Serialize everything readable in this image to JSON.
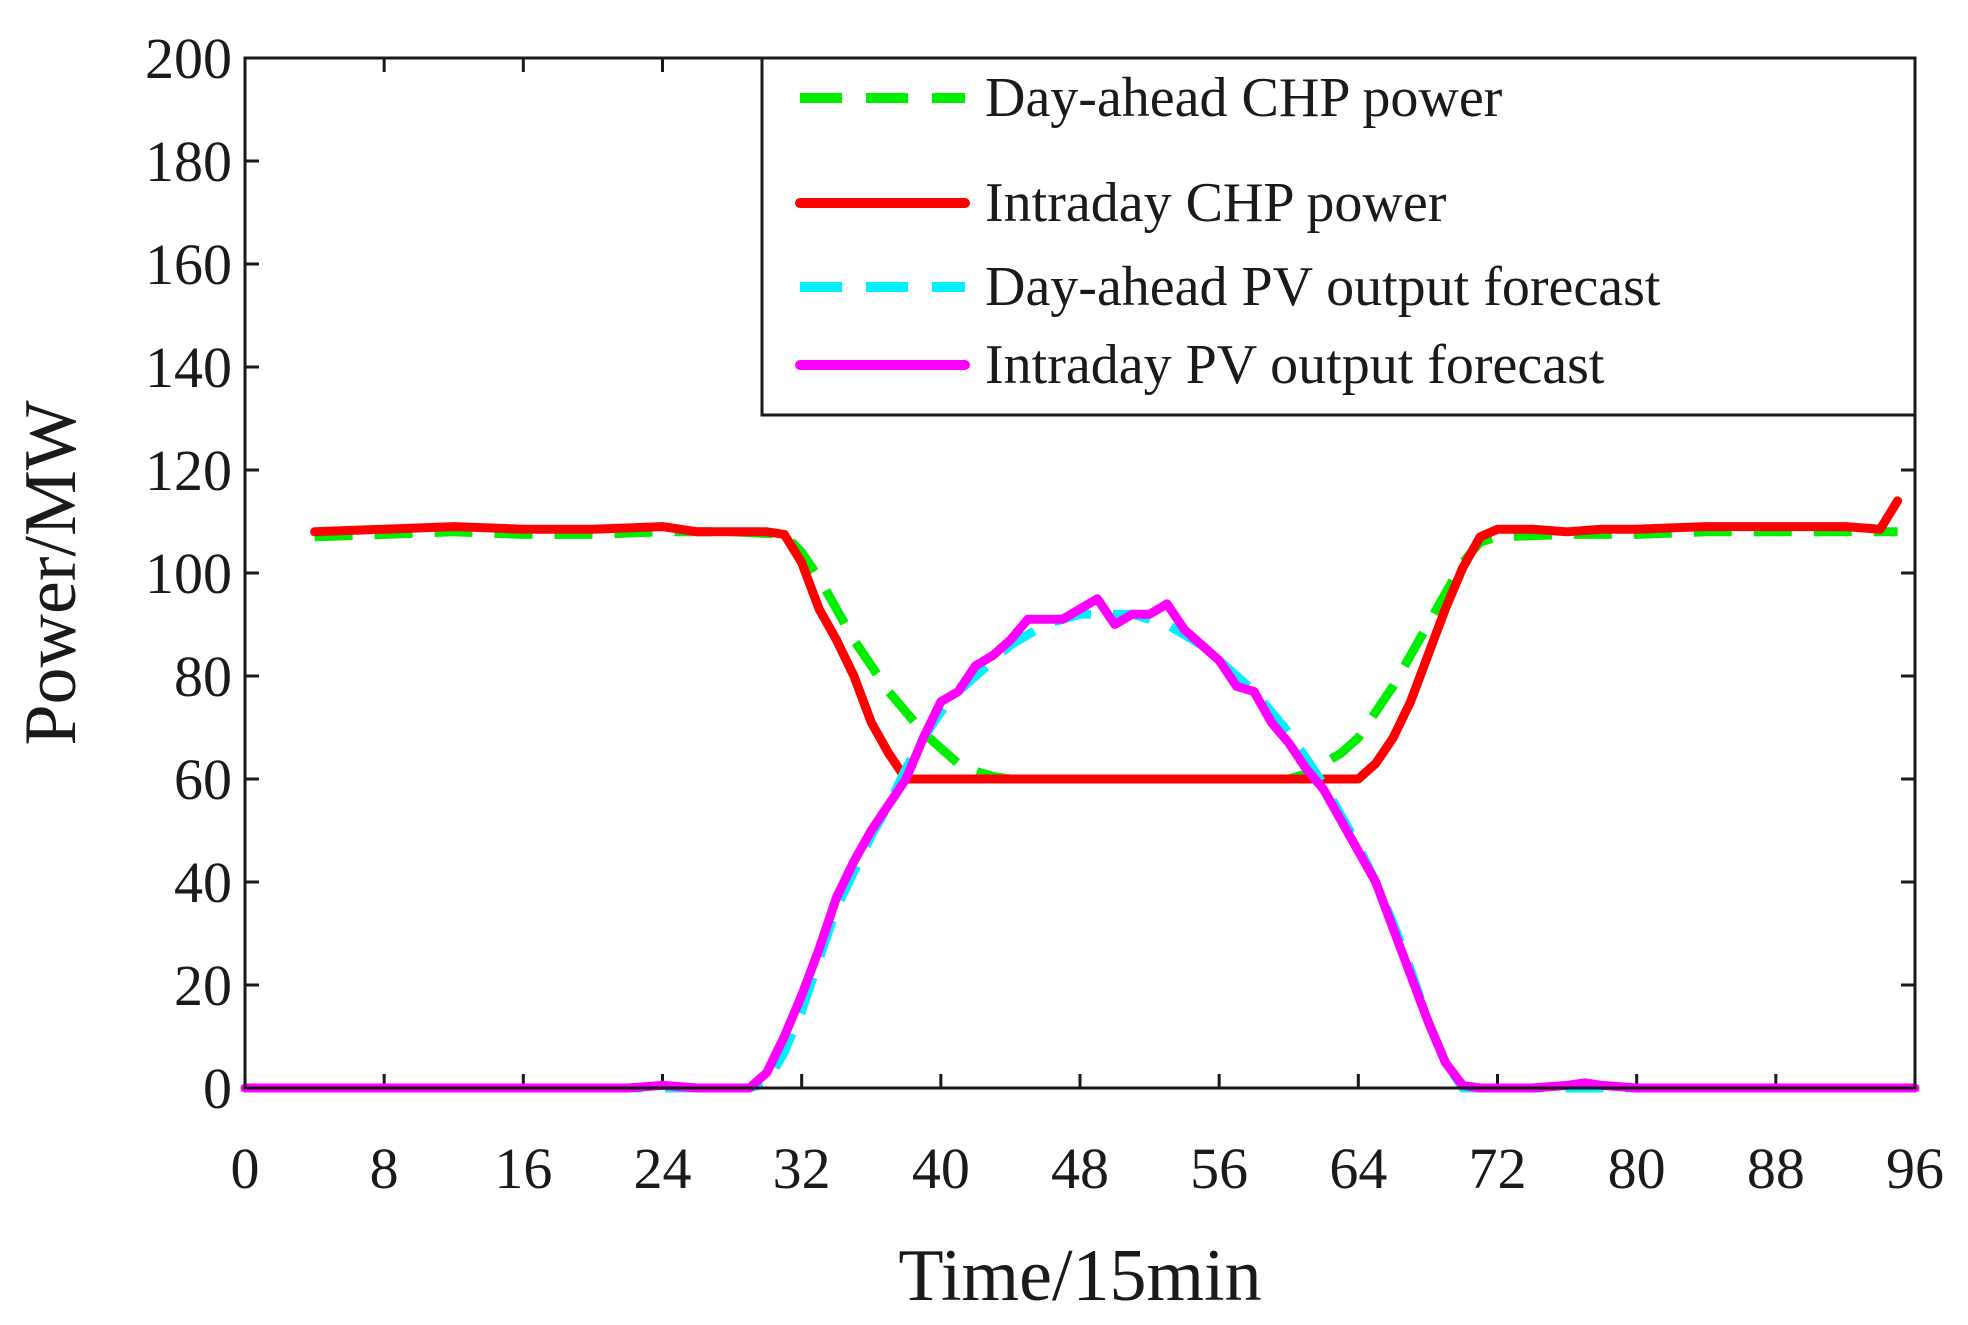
{
  "chart_data": {
    "type": "line",
    "title": "",
    "xlabel": "Time/15min",
    "ylabel": "Power/MW",
    "xlim": [
      0,
      96
    ],
    "ylim": [
      0,
      200
    ],
    "xticks": [
      0,
      8,
      16,
      24,
      32,
      40,
      48,
      56,
      64,
      72,
      80,
      88,
      96
    ],
    "yticks": [
      0,
      20,
      40,
      60,
      80,
      100,
      120,
      140,
      160,
      180,
      200
    ],
    "legend_position": "top-right",
    "series": [
      {
        "name": "Day-ahead CHP power",
        "color": "#00ee00",
        "style": "dashed",
        "x": [
          4,
          8,
          12,
          16,
          20,
          24,
          28,
          31,
          32,
          33,
          34,
          35,
          36,
          37,
          38,
          39,
          40,
          41,
          42,
          43,
          44,
          48,
          52,
          56,
          60,
          61,
          62,
          63,
          64,
          65,
          66,
          67,
          68,
          69,
          70,
          71,
          72,
          76,
          80,
          84,
          88,
          92,
          95
        ],
        "values": [
          107,
          107.5,
          108,
          107.5,
          107.5,
          108,
          108,
          107.5,
          104,
          99,
          93,
          87,
          82,
          77,
          73,
          69,
          66,
          63,
          61.5,
          60.5,
          60,
          60,
          60,
          60,
          60,
          61,
          63,
          65,
          68,
          73,
          78,
          84,
          90,
          96,
          102,
          106,
          107,
          107.5,
          107.5,
          108,
          108,
          108,
          108
        ]
      },
      {
        "name": "Intraday CHP power",
        "color": "#ff0000",
        "style": "solid",
        "x": [
          4,
          8,
          12,
          16,
          20,
          24,
          26,
          28,
          30,
          31,
          32,
          33,
          34,
          35,
          36,
          37,
          38,
          39,
          44,
          48,
          52,
          56,
          60,
          62,
          63,
          64,
          65,
          66,
          67,
          68,
          69,
          70,
          71,
          72,
          74,
          76,
          78,
          80,
          84,
          88,
          92,
          94,
          95
        ],
        "values": [
          108,
          108.5,
          109,
          108.5,
          108.5,
          109,
          108,
          108,
          108,
          107.5,
          102,
          93,
          87,
          80,
          71,
          65,
          60,
          60,
          60,
          60,
          60,
          60,
          60,
          60,
          60,
          60,
          63,
          68,
          75,
          84,
          93,
          101,
          107,
          108.5,
          108.5,
          108,
          108.5,
          108.5,
          109,
          109,
          109,
          108.5,
          114
        ]
      },
      {
        "name": "Day-ahead PV output forecast",
        "color": "#00f0ff",
        "style": "dashed",
        "x": [
          0,
          4,
          8,
          12,
          16,
          20,
          24,
          28,
          29,
          30,
          31,
          32,
          33,
          34,
          35,
          36,
          37,
          38,
          39,
          40,
          41,
          42,
          43,
          44,
          45,
          46,
          47,
          48,
          49,
          50,
          51,
          52,
          53,
          54,
          55,
          56,
          57,
          58,
          59,
          60,
          61,
          62,
          63,
          64,
          65,
          66,
          67,
          68,
          69,
          70,
          71,
          72,
          76,
          80,
          84,
          88,
          92,
          96
        ],
        "values": [
          0,
          0,
          0,
          0,
          0,
          0,
          0,
          0,
          0,
          1,
          7,
          15,
          25,
          35,
          42,
          49,
          55,
          62,
          68,
          73,
          77,
          80,
          83,
          86,
          88,
          90,
          91,
          92,
          92,
          92,
          92,
          91,
          90,
          88,
          86,
          83,
          80,
          77,
          73,
          69,
          64,
          59,
          53,
          47,
          40,
          32,
          23,
          13,
          5,
          0,
          0,
          0,
          0,
          0,
          0,
          0,
          0,
          0
        ]
      },
      {
        "name": "Intraday PV output forecast",
        "color": "#ff00ff",
        "style": "solid",
        "x": [
          0,
          4,
          8,
          12,
          16,
          20,
          22,
          24,
          26,
          28,
          29,
          30,
          31,
          32,
          33,
          34,
          35,
          36,
          37,
          38,
          39,
          40,
          41,
          42,
          43,
          44,
          45,
          46,
          47,
          48,
          49,
          50,
          51,
          52,
          53,
          54,
          55,
          56,
          57,
          58,
          59,
          60,
          61,
          62,
          63,
          64,
          65,
          66,
          67,
          68,
          69,
          70,
          71,
          72,
          74,
          76,
          77,
          78,
          80,
          84,
          88,
          92,
          96
        ],
        "values": [
          0,
          0,
          0,
          0,
          0,
          0,
          0,
          0.5,
          0,
          0,
          0,
          3,
          10,
          18,
          27,
          37,
          44,
          50,
          55,
          60,
          68,
          75,
          77,
          82,
          84,
          87,
          91,
          91,
          91,
          93,
          95,
          90,
          92,
          92,
          94,
          89,
          86,
          83,
          78,
          77,
          71,
          67,
          62,
          58,
          52,
          46,
          40,
          31,
          22,
          13,
          5,
          0.5,
          0,
          0,
          0,
          0.5,
          1,
          0.5,
          0,
          0,
          0,
          0,
          0
        ]
      }
    ]
  }
}
